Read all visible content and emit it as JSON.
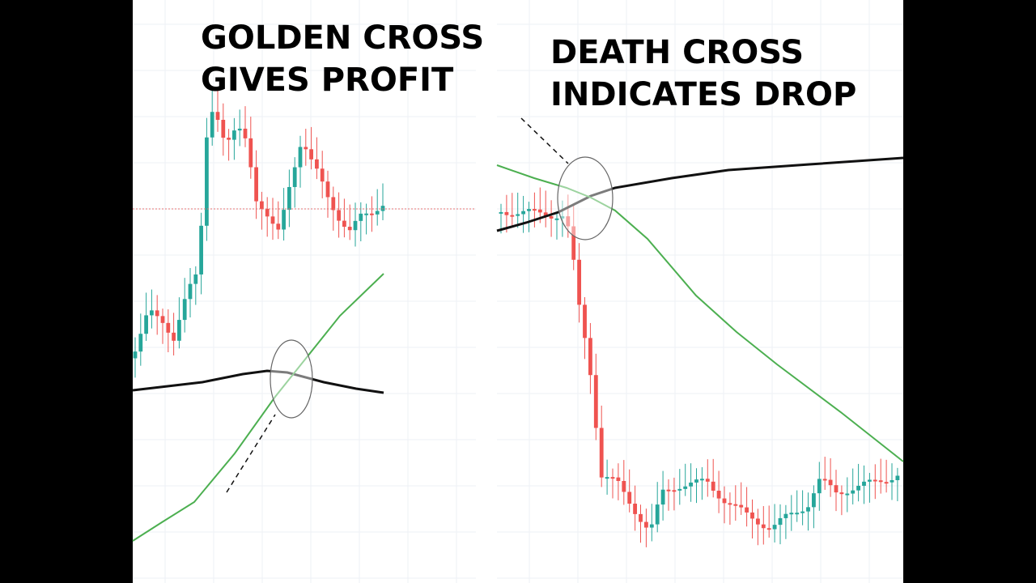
{
  "panels": [
    {
      "title_lines": [
        "GOLDEN CROSS",
        "GIVES PROFIT"
      ]
    },
    {
      "title_lines": [
        "DEATH CROSS",
        "INDICATES DROP"
      ]
    }
  ]
}
